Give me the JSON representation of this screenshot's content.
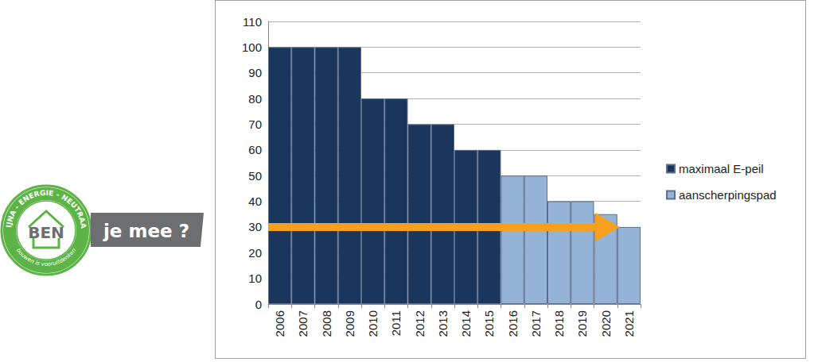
{
  "chart_data": {
    "type": "bar",
    "categories": [
      "2006",
      "2007",
      "2008",
      "2009",
      "2010",
      "2011",
      "2012",
      "2013",
      "2014",
      "2015",
      "2016",
      "2017",
      "2018",
      "2019",
      "2020",
      "2021"
    ],
    "series": [
      {
        "name": "maximaal E-peil",
        "color": "#1b365d",
        "values": [
          100,
          100,
          100,
          100,
          80,
          80,
          70,
          70,
          60,
          60,
          null,
          null,
          null,
          null,
          null,
          null
        ]
      },
      {
        "name": "aanscherpingspad",
        "color": "#95b3d7",
        "values": [
          null,
          null,
          null,
          null,
          null,
          null,
          null,
          null,
          null,
          null,
          50,
          50,
          40,
          40,
          35,
          30
        ]
      }
    ],
    "ylim": [
      0,
      110
    ],
    "yticks": [
      0,
      10,
      20,
      30,
      40,
      50,
      60,
      70,
      80,
      90,
      100,
      110
    ],
    "grid": true,
    "legend": "right"
  },
  "logo": {
    "ring": "BIJNA - ENERGIE - NEUTRAAL",
    "name": "BEN",
    "tagline": "bouwen is vooruitdenken",
    "badge": "je mee ?"
  }
}
